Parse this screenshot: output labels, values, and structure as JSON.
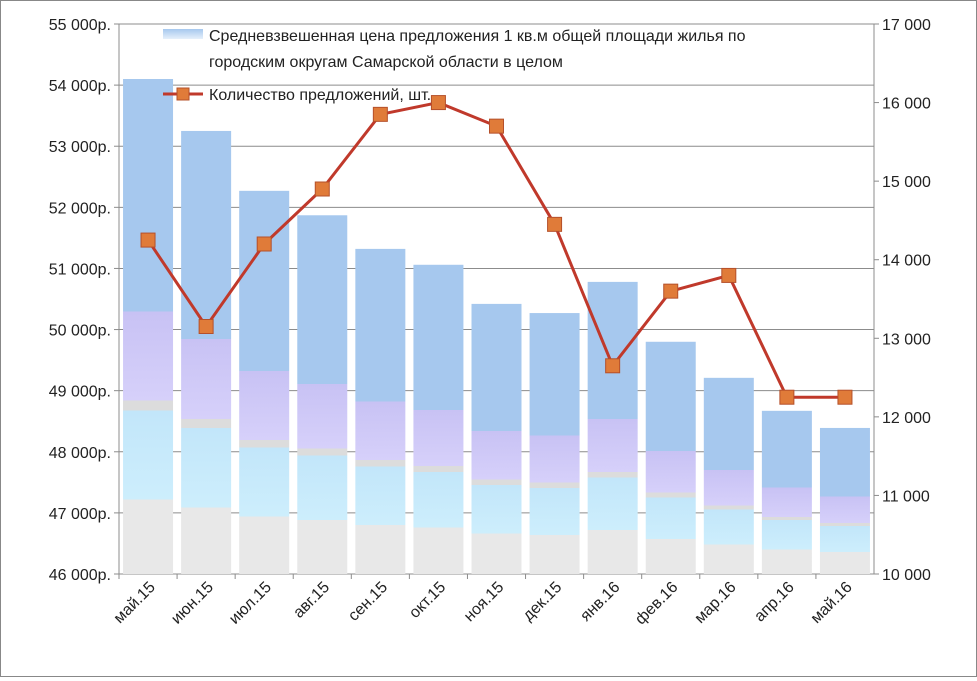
{
  "chart_data": {
    "type": "bar+line",
    "categories": [
      "май.15",
      "июн.15",
      "июл.15",
      "авг.15",
      "сен.15",
      "окт.15",
      "ноя.15",
      "дек.15",
      "янв.16",
      "фев.16",
      "мар.16",
      "апр.16",
      "май.16"
    ],
    "series": [
      {
        "name": "Средневзвешенная цена предложения 1 кв.м общей площади жилья по городским округам Самарской области в целом",
        "type": "bar",
        "axis": "left",
        "values": [
          54100,
          53250,
          52270,
          51870,
          51320,
          51060,
          50420,
          50270,
          50780,
          49800,
          49210,
          48670,
          48390
        ],
        "color": "#a6c8ee"
      },
      {
        "name": "Количество предложений, шт.",
        "type": "line",
        "axis": "right",
        "values": [
          14250,
          13150,
          14200,
          14900,
          15850,
          16000,
          15700,
          14450,
          12650,
          13600,
          13800,
          12250,
          12250
        ],
        "color": "#c0392b",
        "marker_color": "#e07b39"
      }
    ],
    "left_axis": {
      "min": 46000,
      "max": 55000,
      "step": 1000,
      "tick_labels": [
        "46 000р.",
        "47 000р.",
        "48 000р.",
        "49 000р.",
        "50 000р.",
        "51 000р.",
        "52 000р.",
        "53 000р.",
        "54 000р.",
        "55 000р."
      ]
    },
    "right_axis": {
      "min": 10000,
      "max": 17000,
      "step": 1000,
      "tick_labels": [
        "10 000",
        "11 000",
        "12 000",
        "13 000",
        "14 000",
        "15 000",
        "16 000",
        "17 000"
      ]
    },
    "grid": true,
    "legend_placement": "top",
    "legend": [
      "Средневзвешенная цена предложения 1 кв.м общей площади жилья по",
      "городским округам Самарской области в целом",
      "Количество предложений, шт."
    ]
  }
}
